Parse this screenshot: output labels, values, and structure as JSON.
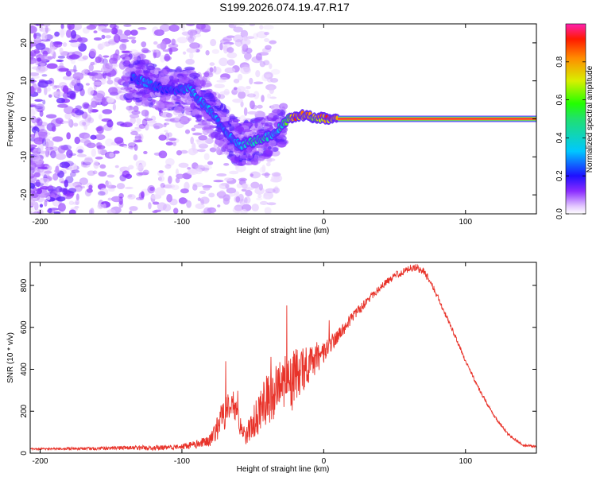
{
  "title": "S199.2026.074.19.47.R17",
  "chart_data": [
    {
      "type": "heatmap",
      "title": "S199.2026.074.19.47.R17",
      "xlabel": "Height of straight line (km)",
      "ylabel": "Frequency (Hz)",
      "xlim": [
        -207,
        150
      ],
      "ylim": [
        -25,
        25
      ],
      "x_ticks": [
        -200,
        -100,
        0,
        100
      ],
      "x_tick_labels": [
        "-200",
        "-100",
        "0",
        "100"
      ],
      "y_ticks": [
        -20,
        -10,
        0,
        10,
        20
      ],
      "y_tick_labels": [
        "-20",
        "-10",
        "0",
        "10",
        "20"
      ],
      "colorbar": {
        "label": "Normalized spectral amplitude",
        "range": [
          0,
          1
        ],
        "ticks": [
          0.0,
          0.2,
          0.4,
          0.6,
          0.8
        ],
        "tick_labels": [
          "0.0",
          "0.2",
          "0.4",
          "0.6",
          "0.8"
        ]
      },
      "ridge": {
        "description": "dominant frequency ridge",
        "x": [
          -135,
          -125,
          -115,
          -105,
          -95,
          -88,
          -80,
          -72,
          -65,
          -58,
          -50,
          -42,
          -35,
          -28,
          -22,
          -15,
          -8,
          0,
          10,
          30,
          60,
          100,
          150
        ],
        "y": [
          11,
          9.5,
          8,
          7.5,
          8,
          5,
          2,
          -2,
          -5,
          -7,
          -6,
          -5,
          -4,
          -1,
          0.5,
          1,
          0.5,
          0.2,
          0,
          0,
          0,
          0,
          0
        ],
        "amplitude": [
          0.25,
          0.3,
          0.25,
          0.25,
          0.35,
          0.3,
          0.35,
          0.3,
          0.3,
          0.35,
          0.45,
          0.45,
          0.35,
          0.5,
          0.8,
          0.9,
          0.7,
          0.8,
          0.95,
          0.95,
          0.95,
          0.95,
          0.95
        ]
      }
    },
    {
      "type": "line",
      "xlabel": "Height of straight line (km)",
      "ylabel": "SNR (10 * v/v)",
      "xlim": [
        -207,
        150
      ],
      "ylim": [
        0,
        910
      ],
      "x_ticks": [
        -200,
        -100,
        0,
        100
      ],
      "x_tick_labels": [
        "-200",
        "-100",
        "0",
        "100"
      ],
      "y_ticks": [
        0,
        200,
        400,
        600,
        800
      ],
      "y_tick_labels": [
        "0",
        "200",
        "400",
        "600",
        "800"
      ],
      "series": [
        {
          "name": "SNR",
          "color": "#e8332a",
          "x": [
            -207,
            -200,
            -180,
            -160,
            -140,
            -120,
            -100,
            -90,
            -80,
            -75,
            -70,
            -65,
            -62,
            -58,
            -55,
            -50,
            -45,
            -40,
            -35,
            -30,
            -25,
            -22,
            -20,
            -15,
            -10,
            -5,
            0,
            5,
            10,
            15,
            20,
            30,
            40,
            50,
            60,
            65,
            70,
            75,
            80,
            90,
            100,
            110,
            120,
            130,
            140,
            150
          ],
          "y": [
            20,
            20,
            22,
            22,
            25,
            25,
            30,
            40,
            60,
            120,
            180,
            240,
            200,
            110,
            80,
            130,
            210,
            260,
            280,
            300,
            380,
            330,
            370,
            400,
            420,
            440,
            480,
            520,
            560,
            600,
            650,
            720,
            790,
            845,
            880,
            885,
            870,
            820,
            750,
            600,
            440,
            300,
            180,
            90,
            40,
            30
          ],
          "noise": [
            4,
            4,
            6,
            8,
            10,
            12,
            14,
            20,
            30,
            60,
            80,
            80,
            60,
            40,
            50,
            80,
            110,
            120,
            130,
            140,
            160,
            160,
            140,
            110,
            90,
            70,
            50,
            40,
            35,
            30,
            25,
            20,
            18,
            18,
            18,
            18,
            18,
            16,
            14,
            12,
            10,
            9,
            8,
            7,
            6,
            6
          ]
        }
      ]
    }
  ]
}
